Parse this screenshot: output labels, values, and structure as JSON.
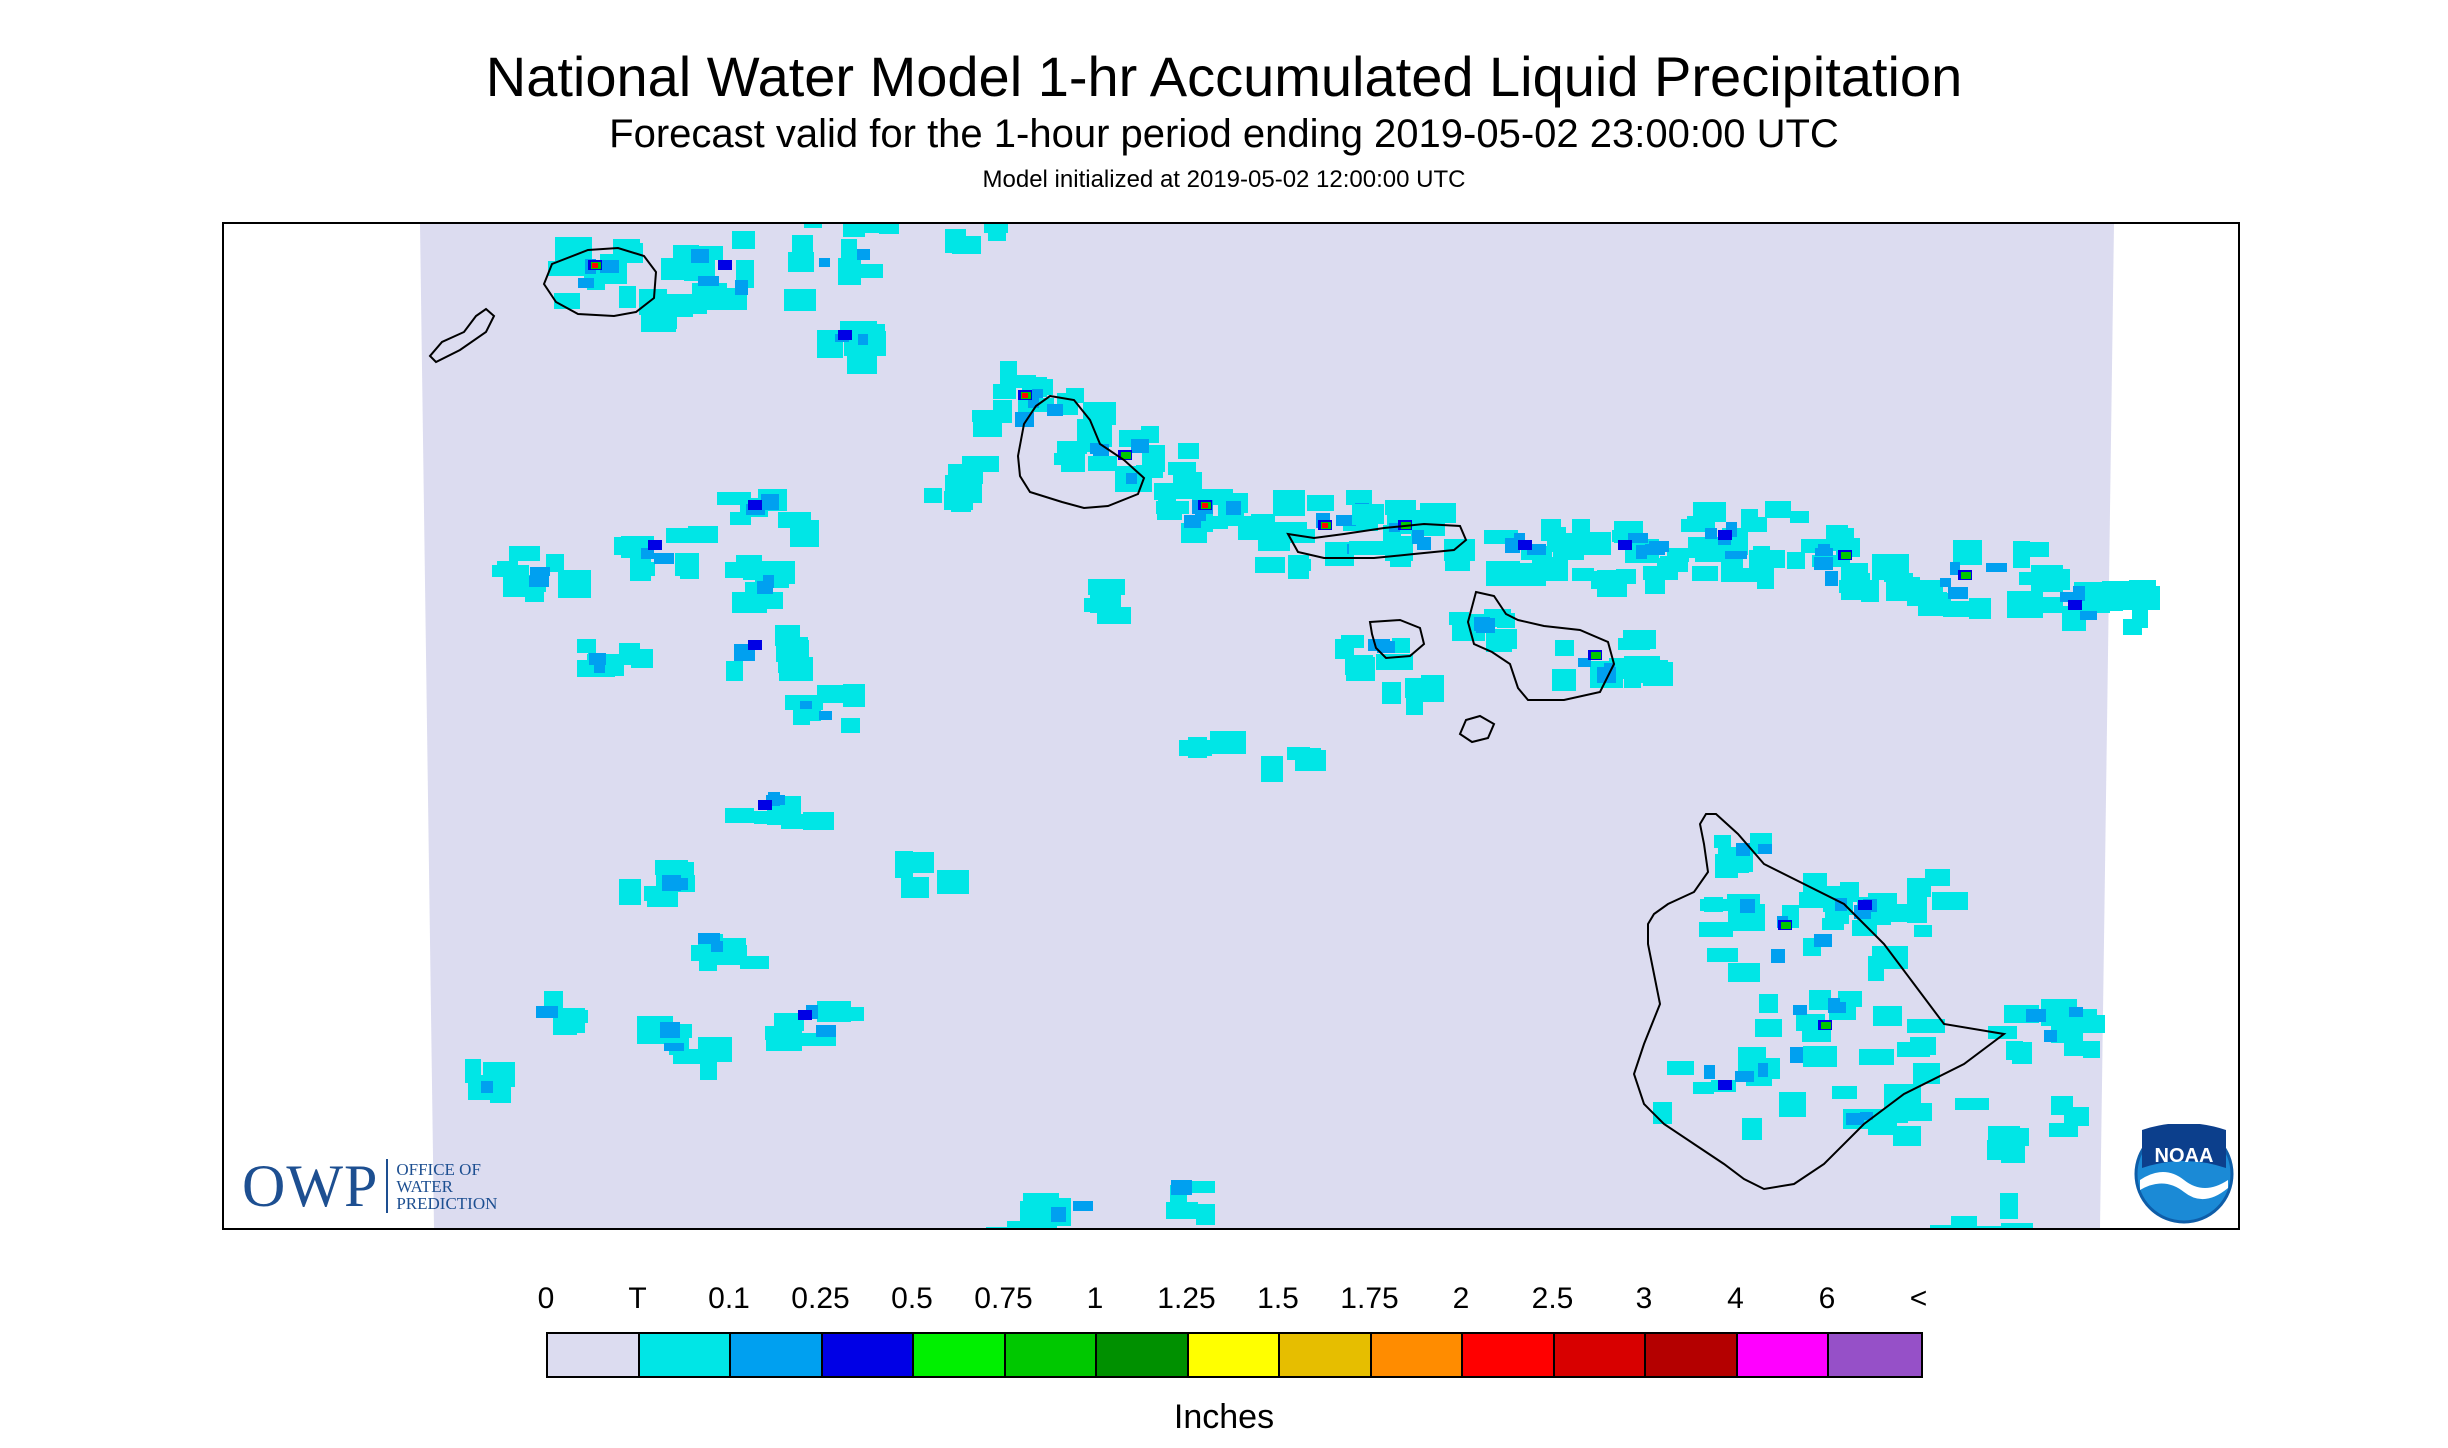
{
  "title": "National Water Model 1-hr Accumulated Liquid Precipitation",
  "subtitle": "Forecast valid for the 1-hour period ending 2019-05-02 23:00:00 UTC",
  "model_init": "Model initialized at 2019-05-02 12:00:00 UTC",
  "logos": {
    "owp_mark": "OWP",
    "owp_text": [
      "OFFICE OF",
      "WATER",
      "PREDICTION"
    ],
    "noaa_text": "NOAA"
  },
  "legend": {
    "units": "Inches",
    "labels": [
      "0",
      "T",
      "0.1",
      "0.25",
      "0.5",
      "0.75",
      "1",
      "1.25",
      "1.5",
      "1.75",
      "2",
      "2.5",
      "3",
      "4",
      "6",
      "<"
    ],
    "colors": [
      "#dcdcf0",
      "#00e6e6",
      "#00a0f0",
      "#0000e6",
      "#00f000",
      "#00c800",
      "#009000",
      "#ffff00",
      "#e6be00",
      "#ff8c00",
      "#ff0000",
      "#d80000",
      "#b40000",
      "#ff00ff",
      "#9650c8"
    ]
  },
  "map": {
    "background_color": "#dcdcf0",
    "coastline_color": "#000000",
    "islands": [
      "Niihau",
      "Kauai",
      "Oahu",
      "Molokai",
      "Lanai",
      "Maui",
      "Kahoolawe",
      "Hawaii"
    ]
  }
}
